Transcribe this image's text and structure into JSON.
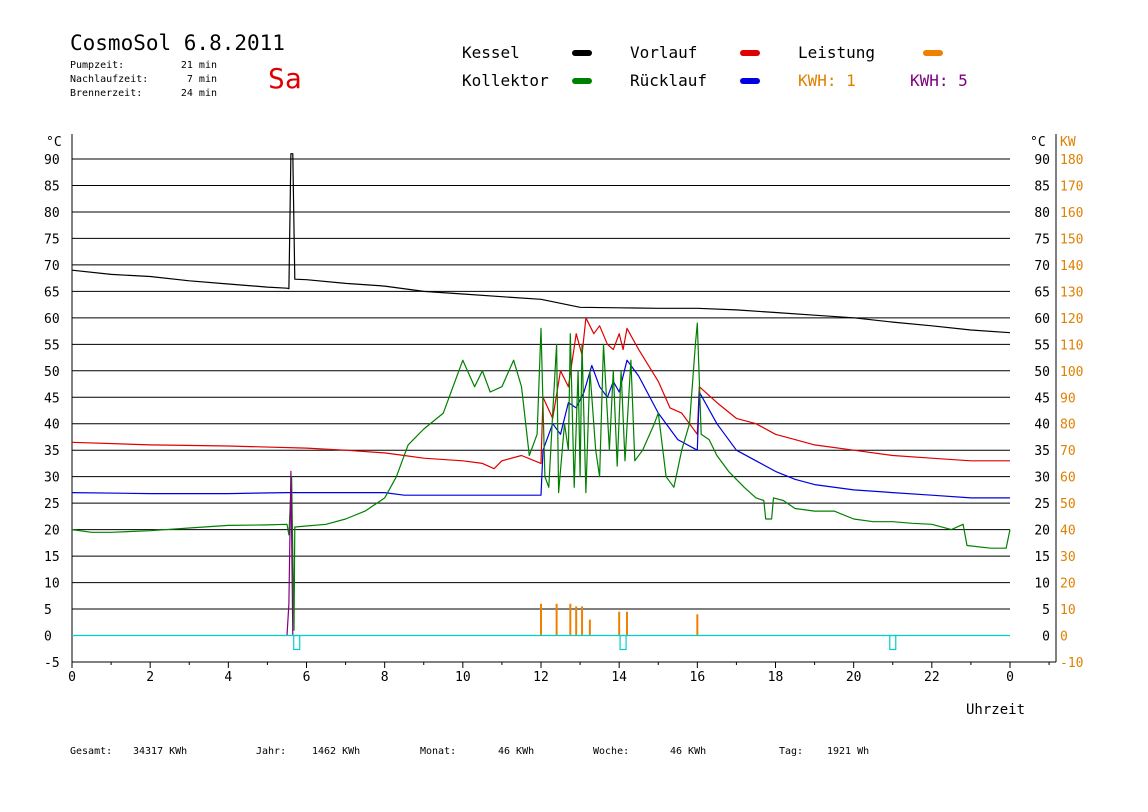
{
  "header": {
    "title": "CosmoSol 6.8.2011",
    "day": "Sa",
    "info": [
      {
        "label": "Pumpzeit:",
        "value": "21 min"
      },
      {
        "label": "Nachlaufzeit:",
        "value": "7 min"
      },
      {
        "label": "Brennerzeit:",
        "value": "24 min"
      }
    ]
  },
  "legend": [
    {
      "label": "Kessel",
      "color": "#000000"
    },
    {
      "label": "Vorlauf",
      "color": "#e00000"
    },
    {
      "label": "Leistung",
      "color": "#f08000"
    },
    {
      "label": "Kollektor",
      "color": "#008000"
    },
    {
      "label": "Rücklauf",
      "color": "#0000e0"
    },
    {
      "label": "KWH: 1",
      "color": "#e08000"
    },
    {
      "label": "KWH: 5",
      "color": "#800080"
    }
  ],
  "footer": [
    {
      "label": "Gesamt:",
      "value": "34317 KWh"
    },
    {
      "label": "Jahr:",
      "value": "1462 KWh"
    },
    {
      "label": "Monat:",
      "value": "46 KWh"
    },
    {
      "label": "Woche:",
      "value": "46 KWh"
    },
    {
      "label": "Tag:",
      "value": "1921 Wh"
    }
  ],
  "chart_data": {
    "type": "line",
    "xlabel": "Uhrzeit",
    "ylabel_left": "°C",
    "ylabel_right_1": "°C",
    "ylabel_right_2": "KW",
    "xlim": [
      0,
      24
    ],
    "ylim": [
      -5,
      95
    ],
    "x_ticks": [
      "0",
      "2",
      "4",
      "6",
      "8",
      "10",
      "12",
      "14",
      "16",
      "18",
      "20",
      "22",
      "0"
    ],
    "y_ticks_left": [
      "-5",
      "0",
      "5",
      "10",
      "15",
      "20",
      "25",
      "30",
      "35",
      "40",
      "45",
      "50",
      "55",
      "60",
      "65",
      "70",
      "75",
      "80",
      "85",
      "90"
    ],
    "y_ticks_right": [
      "0",
      "5",
      "10",
      "15",
      "20",
      "25",
      "30",
      "35",
      "40",
      "45",
      "50",
      "55",
      "60",
      "65",
      "70",
      "75",
      "80",
      "85",
      "90"
    ],
    "y_ticks_kw": [
      "-10",
      "0",
      "10",
      "20",
      "30",
      "40",
      "50",
      "60",
      "70",
      "80",
      "90",
      "100",
      "110",
      "120",
      "130",
      "140",
      "150",
      "160",
      "170",
      "180"
    ],
    "colors": {
      "kessel": "#000000",
      "vorlauf": "#e00000",
      "ruecklauf": "#0000e0",
      "kollektor": "#008000",
      "leistung": "#f08000",
      "kwh5": "#800080",
      "base": "#00d0d0"
    },
    "series": [
      {
        "name": "Kessel",
        "color": "#000000",
        "points": [
          [
            0,
            69
          ],
          [
            1,
            68.2
          ],
          [
            2,
            67.8
          ],
          [
            3,
            67
          ],
          [
            4,
            66.4
          ],
          [
            5,
            65.8
          ],
          [
            5.5,
            65.6
          ],
          [
            5.55,
            65.5
          ],
          [
            5.6,
            91
          ],
          [
            5.65,
            91
          ],
          [
            5.7,
            67.3
          ],
          [
            6,
            67.2
          ],
          [
            7,
            66.5
          ],
          [
            8,
            66
          ],
          [
            9,
            65
          ],
          [
            10,
            64.5
          ],
          [
            11,
            64
          ],
          [
            12,
            63.5
          ],
          [
            13,
            62
          ],
          [
            14,
            61.9
          ],
          [
            15,
            61.8
          ],
          [
            16,
            61.8
          ],
          [
            17,
            61.5
          ],
          [
            18,
            61
          ],
          [
            19,
            60.5
          ],
          [
            20,
            60
          ],
          [
            21,
            59.2
          ],
          [
            22,
            58.5
          ],
          [
            23,
            57.7
          ],
          [
            24,
            57.2
          ]
        ]
      },
      {
        "name": "Vorlauf",
        "color": "#e00000",
        "points": [
          [
            0,
            36.5
          ],
          [
            2,
            36
          ],
          [
            4,
            35.8
          ],
          [
            6,
            35.4
          ],
          [
            7,
            35
          ],
          [
            8,
            34.5
          ],
          [
            8.5,
            34
          ],
          [
            9,
            33.5
          ],
          [
            10,
            33
          ],
          [
            10.5,
            32.5
          ],
          [
            10.8,
            31.5
          ],
          [
            11,
            33
          ],
          [
            11.5,
            34
          ],
          [
            12,
            32.5
          ],
          [
            12.05,
            45
          ],
          [
            12.3,
            41
          ],
          [
            12.5,
            50
          ],
          [
            12.7,
            47
          ],
          [
            12.9,
            57
          ],
          [
            13.05,
            53
          ],
          [
            13.15,
            60
          ],
          [
            13.35,
            57
          ],
          [
            13.5,
            58.5
          ],
          [
            13.7,
            55
          ],
          [
            13.85,
            54
          ],
          [
            14.0,
            57
          ],
          [
            14.1,
            54
          ],
          [
            14.2,
            58
          ],
          [
            14.5,
            54
          ],
          [
            15,
            48
          ],
          [
            15.3,
            43
          ],
          [
            15.6,
            42
          ],
          [
            16,
            38
          ],
          [
            16.05,
            47
          ],
          [
            16.5,
            44
          ],
          [
            17,
            41
          ],
          [
            17.5,
            40
          ],
          [
            18,
            38
          ],
          [
            18.5,
            37
          ],
          [
            19,
            36
          ],
          [
            20,
            35
          ],
          [
            21,
            34
          ],
          [
            22,
            33.5
          ],
          [
            23,
            33
          ],
          [
            24,
            33
          ]
        ]
      },
      {
        "name": "Rücklauf",
        "color": "#0000e0",
        "points": [
          [
            0,
            27
          ],
          [
            2,
            26.8
          ],
          [
            4,
            26.8
          ],
          [
            5.5,
            27
          ],
          [
            6,
            27
          ],
          [
            7,
            27
          ],
          [
            8,
            27
          ],
          [
            8.5,
            26.5
          ],
          [
            9,
            26.5
          ],
          [
            10,
            26.5
          ],
          [
            11,
            26.5
          ],
          [
            12,
            26.5
          ],
          [
            12.05,
            35
          ],
          [
            12.3,
            40
          ],
          [
            12.5,
            38
          ],
          [
            12.7,
            44
          ],
          [
            12.9,
            43
          ],
          [
            13.1,
            46
          ],
          [
            13.3,
            51
          ],
          [
            13.5,
            47
          ],
          [
            13.7,
            45
          ],
          [
            13.85,
            48
          ],
          [
            14.0,
            46
          ],
          [
            14.2,
            52
          ],
          [
            14.5,
            49
          ],
          [
            15,
            42
          ],
          [
            15.5,
            37
          ],
          [
            16,
            35
          ],
          [
            16.05,
            46
          ],
          [
            16.5,
            40
          ],
          [
            17,
            35
          ],
          [
            17.5,
            33
          ],
          [
            18,
            31
          ],
          [
            18.5,
            29.5
          ],
          [
            19,
            28.5
          ],
          [
            20,
            27.5
          ],
          [
            21,
            27
          ],
          [
            22,
            26.5
          ],
          [
            23,
            26
          ],
          [
            24,
            26
          ]
        ]
      },
      {
        "name": "Kollektor",
        "color": "#008000",
        "points": [
          [
            0,
            20
          ],
          [
            0.5,
            19.5
          ],
          [
            1,
            19.5
          ],
          [
            2,
            19.8
          ],
          [
            3,
            20.3
          ],
          [
            4,
            20.8
          ],
          [
            5,
            20.9
          ],
          [
            5.5,
            21
          ],
          [
            5.55,
            19
          ],
          [
            5.62,
            30
          ],
          [
            5.68,
            1
          ],
          [
            5.7,
            20.5
          ],
          [
            6.5,
            21
          ],
          [
            7,
            22
          ],
          [
            7.5,
            23.5
          ],
          [
            8,
            26
          ],
          [
            8.3,
            30
          ],
          [
            8.6,
            36
          ],
          [
            9,
            39
          ],
          [
            9.5,
            42
          ],
          [
            10,
            52
          ],
          [
            10.3,
            47
          ],
          [
            10.5,
            50
          ],
          [
            10.7,
            46
          ],
          [
            11,
            47
          ],
          [
            11.3,
            52
          ],
          [
            11.5,
            47
          ],
          [
            11.7,
            34
          ],
          [
            11.9,
            38
          ],
          [
            12.0,
            58
          ],
          [
            12.1,
            30
          ],
          [
            12.2,
            28
          ],
          [
            12.3,
            42
          ],
          [
            12.4,
            55
          ],
          [
            12.45,
            27
          ],
          [
            12.6,
            40
          ],
          [
            12.7,
            35
          ],
          [
            12.75,
            57
          ],
          [
            12.85,
            28
          ],
          [
            12.95,
            50
          ],
          [
            13.0,
            30
          ],
          [
            13.05,
            55
          ],
          [
            13.15,
            27
          ],
          [
            13.25,
            50
          ],
          [
            13.4,
            35
          ],
          [
            13.5,
            30
          ],
          [
            13.6,
            55
          ],
          [
            13.75,
            35
          ],
          [
            13.85,
            50
          ],
          [
            13.95,
            32
          ],
          [
            14.05,
            50
          ],
          [
            14.15,
            33
          ],
          [
            14.3,
            52
          ],
          [
            14.4,
            33
          ],
          [
            14.6,
            35
          ],
          [
            14.9,
            40
          ],
          [
            15.0,
            42
          ],
          [
            15.2,
            30
          ],
          [
            15.4,
            28
          ],
          [
            15.6,
            35
          ],
          [
            15.8,
            40
          ],
          [
            15.95,
            55
          ],
          [
            16.0,
            59
          ],
          [
            16.1,
            38
          ],
          [
            16.3,
            37
          ],
          [
            16.5,
            34
          ],
          [
            16.8,
            31
          ],
          [
            17.2,
            28
          ],
          [
            17.5,
            26
          ],
          [
            17.7,
            25.5
          ],
          [
            17.75,
            22
          ],
          [
            17.9,
            22
          ],
          [
            17.95,
            26
          ],
          [
            18.2,
            25.5
          ],
          [
            18.5,
            24
          ],
          [
            19,
            23.5
          ],
          [
            19.5,
            23.5
          ],
          [
            20,
            22
          ],
          [
            20.5,
            21.5
          ],
          [
            21,
            21.5
          ],
          [
            21.5,
            21.2
          ],
          [
            22,
            21
          ],
          [
            22.5,
            20
          ],
          [
            22.8,
            21
          ],
          [
            22.9,
            17
          ],
          [
            23.5,
            16.5
          ],
          [
            23.9,
            16.5
          ],
          [
            24,
            20
          ]
        ]
      },
      {
        "name": "KWH: 5",
        "color": "#800080",
        "points": [
          [
            5.5,
            0
          ],
          [
            5.55,
            6
          ],
          [
            5.6,
            31
          ],
          [
            5.65,
            0
          ]
        ]
      },
      {
        "name": "Leistung",
        "color": "#f08000",
        "bars_x": [
          12.0,
          12.4,
          12.75,
          12.9,
          13.05,
          13.25,
          14.0,
          14.2,
          16.0
        ],
        "bars_y": [
          6,
          6,
          6,
          5.5,
          5.5,
          3,
          4.5,
          4.5,
          4
        ]
      },
      {
        "name": "Brenner",
        "color": "#00d0d0",
        "pulses_x": [
          5.75,
          14.1,
          21.0
        ]
      }
    ]
  }
}
